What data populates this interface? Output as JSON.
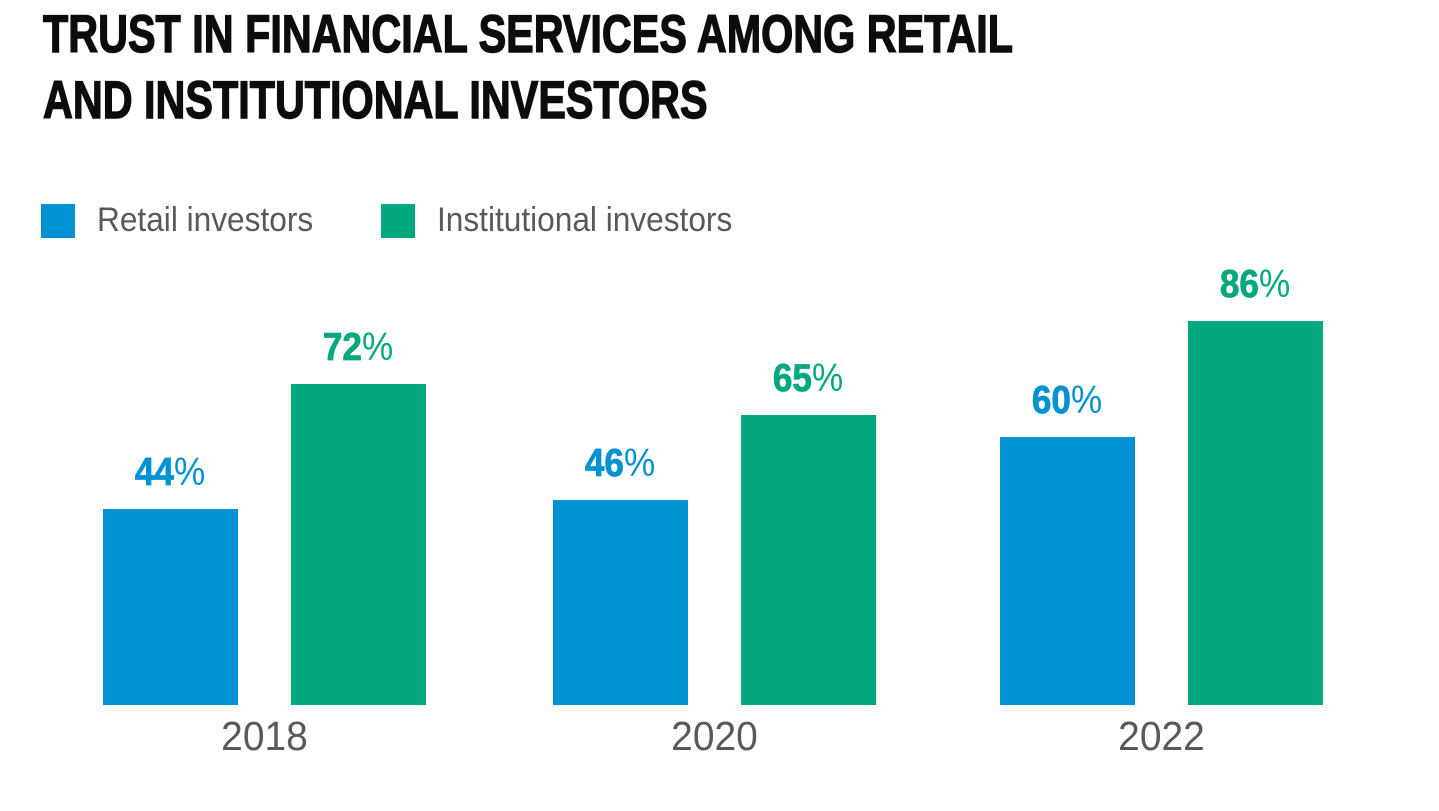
{
  "header": {
    "title_line1": "TRUST IN FINANCIAL SERVICES AMONG RETAIL",
    "title_line2": "AND INSTITUTIONAL INVESTORS"
  },
  "chart_data": {
    "type": "bar",
    "title": "TRUST IN FINANCIAL SERVICES AMONG RETAIL AND INSTITUTIONAL INVESTORS",
    "categories": [
      "2018",
      "2020",
      "2022"
    ],
    "series": [
      {
        "name": "Retail investors",
        "color": "#0092d2",
        "values": [
          44,
          46,
          60
        ]
      },
      {
        "name": "Institutional investors",
        "color": "#04a87e",
        "values": [
          72,
          65,
          86
        ]
      }
    ],
    "value_suffix": "%",
    "xlabel": "",
    "ylabel": "",
    "ylim": [
      0,
      100
    ],
    "grid": false,
    "axes_visible": false,
    "legend_position": "top-left",
    "colors": {
      "title_text": "#0c0c0c",
      "category_labels": "#58595b",
      "legend_text": "#58595b",
      "background": "#ffffff"
    }
  }
}
